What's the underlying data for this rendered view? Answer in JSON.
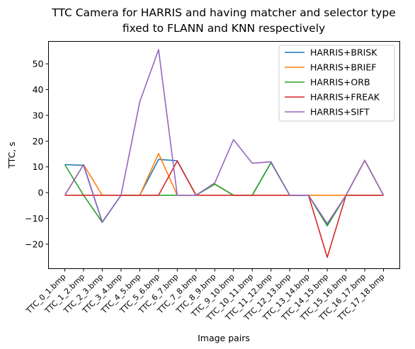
{
  "chart_data": {
    "type": "line",
    "title": [
      "TTC Camera for HARRIS and having matcher and selector type",
      "fixed to FLANN and KNN respectively"
    ],
    "xlabel": "Image pairs",
    "ylabel": "TTC, s",
    "categories": [
      "TTC_0_1.bmp",
      "TTC_1_2.bmp",
      "TTC_2_3.bmp",
      "TTC_3_4.bmp",
      "TTC_4_5.bmp",
      "TTC_5_6.bmp",
      "TTC_6_7.bmp",
      "TTC_7_8.bmp",
      "TTC_8_9.bmp",
      "TTC_9_10.bmp",
      "TTC_10_11.bmp",
      "TTC_11_12.bmp",
      "TTC_12_13.bmp",
      "TTC_13_14.bmp",
      "TTC_14_15.bmp",
      "TTC_15_16.bmp",
      "TTC_16_17.bmp",
      "TTC_17_18.bmp"
    ],
    "yticks": [
      -20,
      -10,
      0,
      10,
      20,
      30,
      40,
      50
    ],
    "ylim": [
      -29.5,
      58.7
    ],
    "legend_position": "top-right",
    "grid": false,
    "series": [
      {
        "name": "HARRIS+BRISK",
        "color": "#1f77b4",
        "values": [
          10.9,
          10.6,
          -11.5,
          -1,
          -1,
          12.9,
          12.4,
          -1,
          3.3,
          -1,
          -1,
          11.7,
          -1,
          -1,
          -12.6,
          -1,
          12.5,
          -1
        ]
      },
      {
        "name": "HARRIS+BRIEF",
        "color": "#ff7f0e",
        "values": [
          -1,
          10.9,
          -1,
          -1,
          -1,
          15.2,
          -1,
          -1,
          3.3,
          -1,
          -1,
          -1,
          -1,
          -1,
          -1,
          -1,
          12.6,
          -1
        ]
      },
      {
        "name": "HARRIS+ORB",
        "color": "#2ca02c",
        "values": [
          10.9,
          -1,
          -11.5,
          -1,
          -1,
          -1,
          -1,
          -1,
          3.3,
          -1,
          -1,
          11.7,
          -1,
          -1,
          -12.9,
          -1,
          -1,
          -1
        ]
      },
      {
        "name": "HARRIS+FREAK",
        "color": "#d62728",
        "values": [
          -1,
          -1,
          -1,
          -1,
          -1,
          -1,
          12.3,
          -1,
          -1,
          -1,
          -1,
          -1,
          -1,
          -1,
          -25.1,
          -1,
          -1,
          -1
        ]
      },
      {
        "name": "HARRIS+SIFT",
        "color": "#9467bd",
        "values": [
          -1,
          10.9,
          -11.4,
          -1,
          35.3,
          55.5,
          -1,
          -1,
          3.8,
          20.6,
          11.4,
          12.0,
          -1,
          -1,
          -12.0,
          -1,
          12.5,
          -1
        ]
      }
    ]
  }
}
